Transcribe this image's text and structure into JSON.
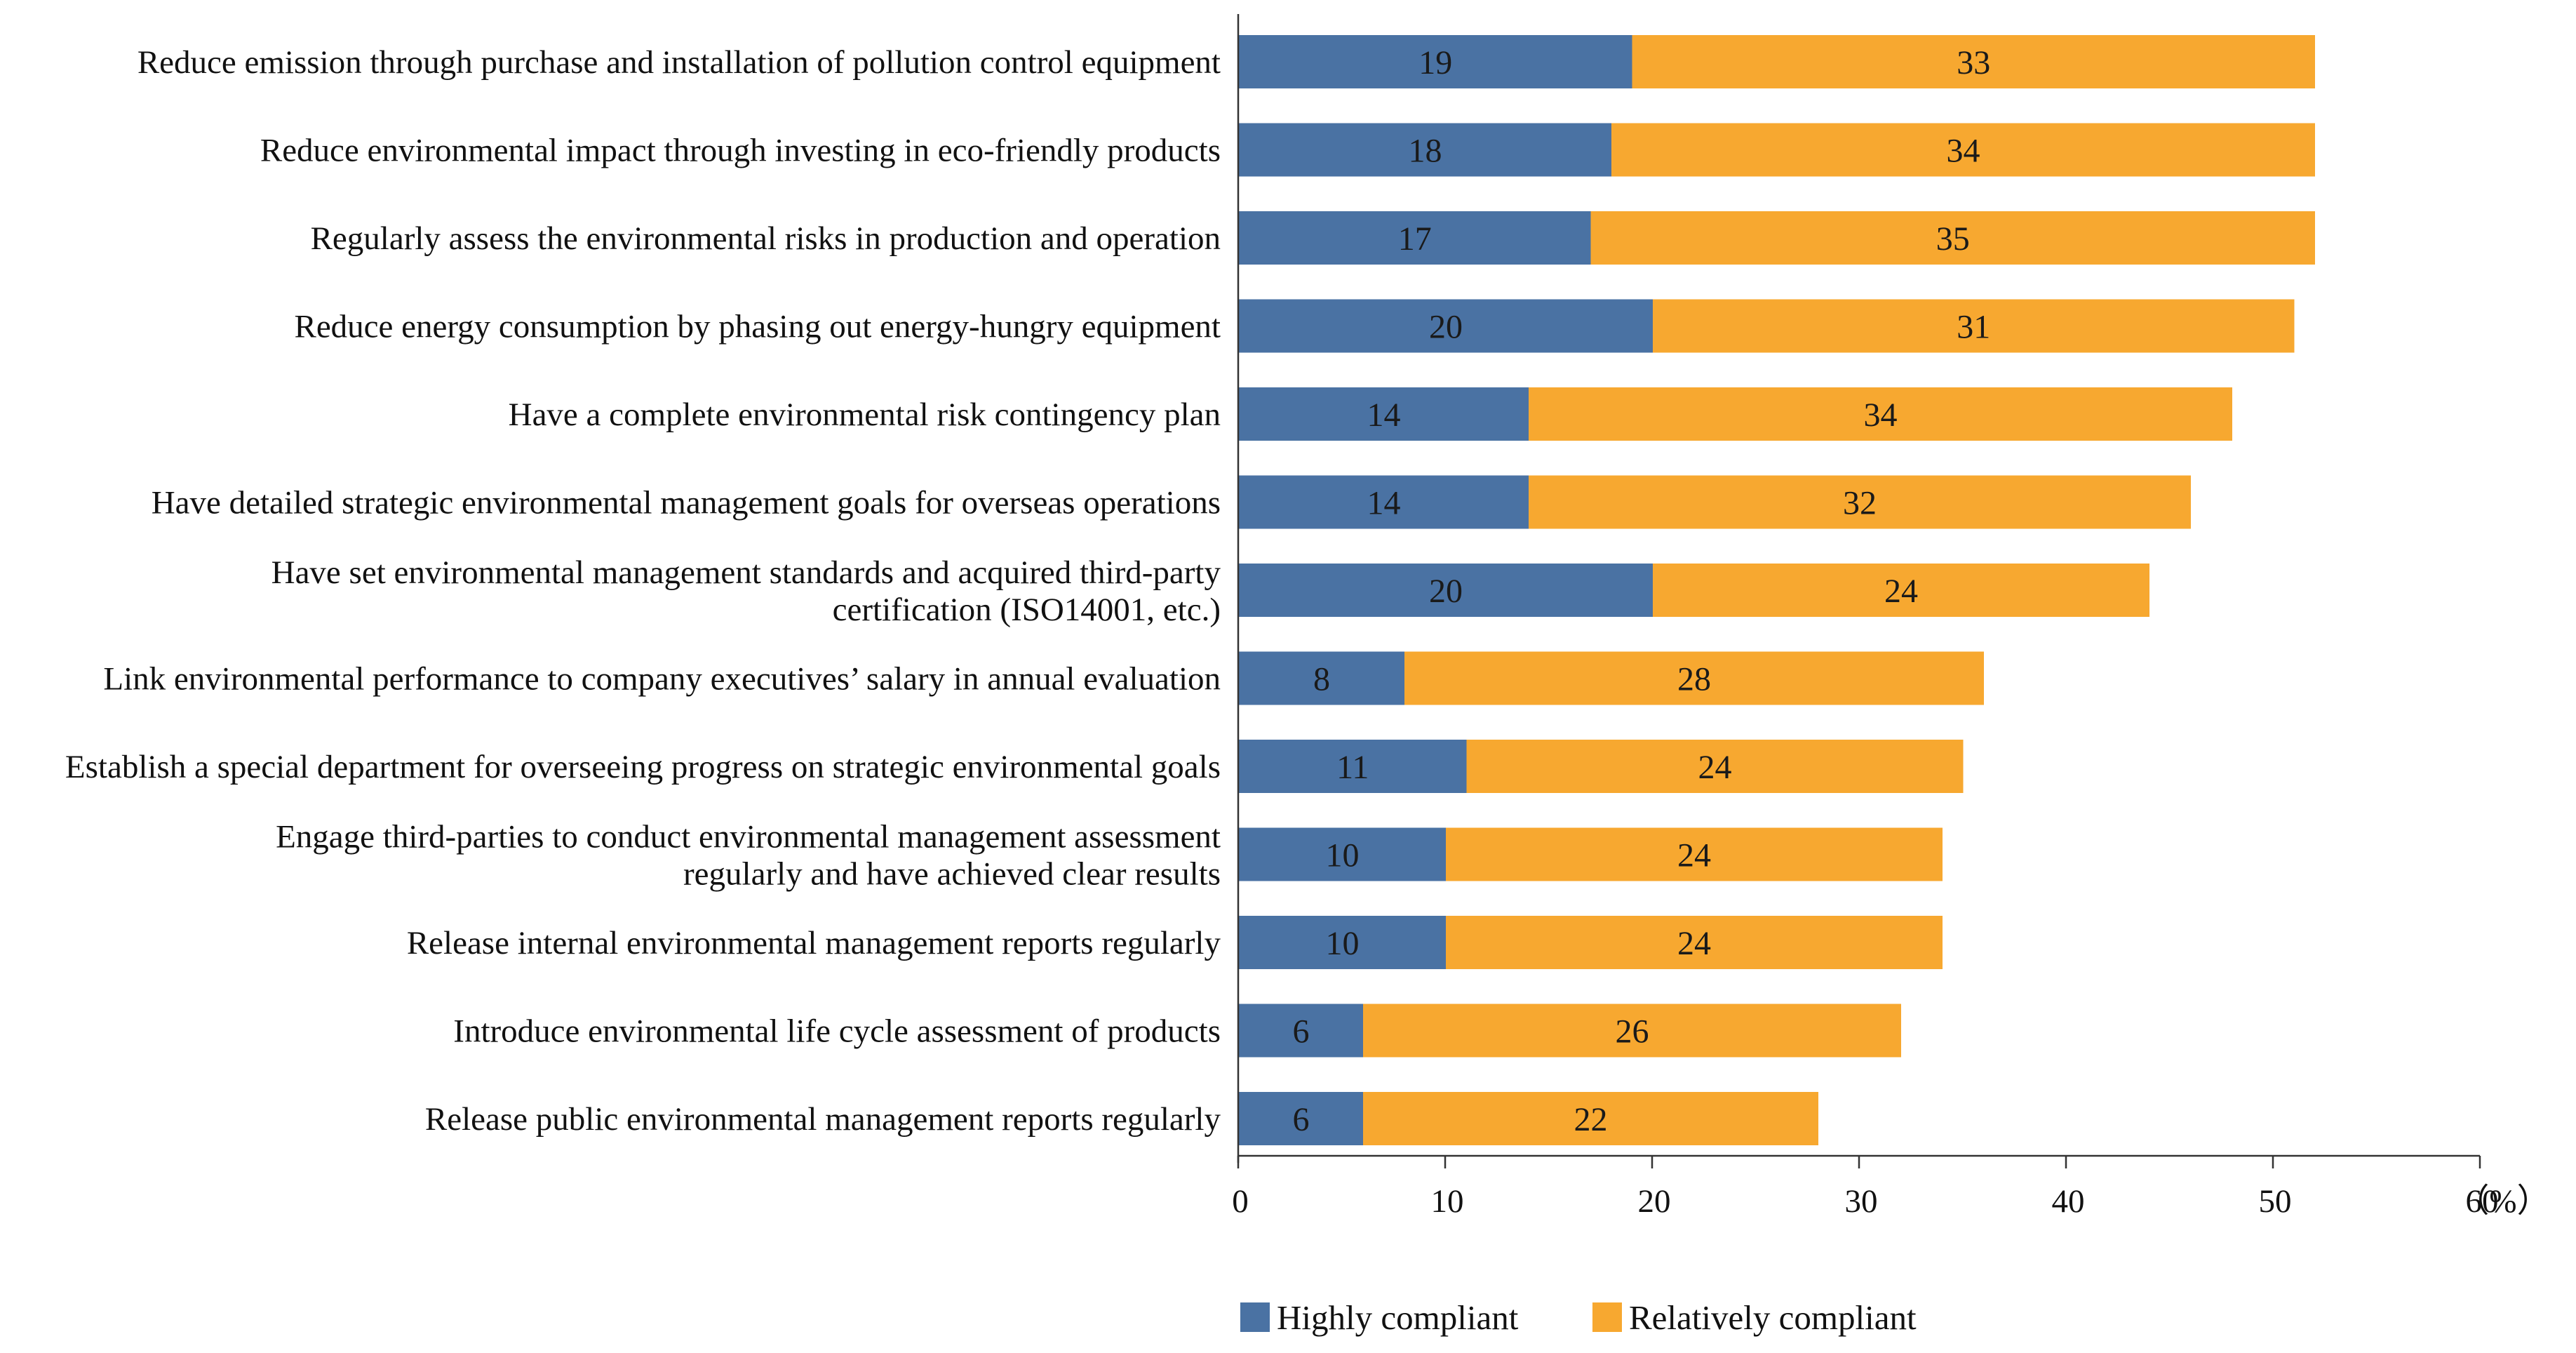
{
  "chart_data": {
    "type": "bar",
    "orientation": "horizontal",
    "stacked": true,
    "categories": [
      [
        "Reduce emission through purchase and installation of pollution control equipment"
      ],
      [
        "Reduce environmental impact through investing in eco-friendly products"
      ],
      [
        "Regularly assess the environmental risks in production and operation"
      ],
      [
        "Reduce energy consumption by phasing out energy-hungry equipment"
      ],
      [
        "Have a complete environmental risk contingency plan"
      ],
      [
        "Have detailed strategic environmental management goals for overseas operations"
      ],
      [
        "Have set environmental management standards and acquired third-party",
        "certification (ISO14001, etc.)"
      ],
      [
        "Link environmental performance to company executives’ salary in annual evaluation"
      ],
      [
        "Establish a special department for overseeing progress on strategic environmental goals"
      ],
      [
        "Engage third-parties to conduct environmental management assessment",
        "regularly and have achieved clear results"
      ],
      [
        "Release internal environmental management reports regularly"
      ],
      [
        "Introduce environmental life cycle assessment of products"
      ],
      [
        "Release public environmental management reports regularly"
      ]
    ],
    "series": [
      {
        "name": "Highly compliant",
        "color": "#4a72a3",
        "values": [
          19,
          18,
          17,
          20,
          14,
          14,
          20,
          8,
          11,
          10,
          10,
          6,
          6
        ]
      },
      {
        "name": "Relatively compliant",
        "color": "#f7a830",
        "values": [
          33,
          34,
          35,
          31,
          34,
          32,
          24,
          28,
          24,
          24,
          24,
          26,
          22
        ]
      }
    ],
    "xlim": [
      0,
      60
    ],
    "xticks": [
      0,
      10,
      20,
      30,
      40,
      50,
      60
    ],
    "unit_label": "（%）",
    "grid": false,
    "legend_position": "bottom-center"
  }
}
